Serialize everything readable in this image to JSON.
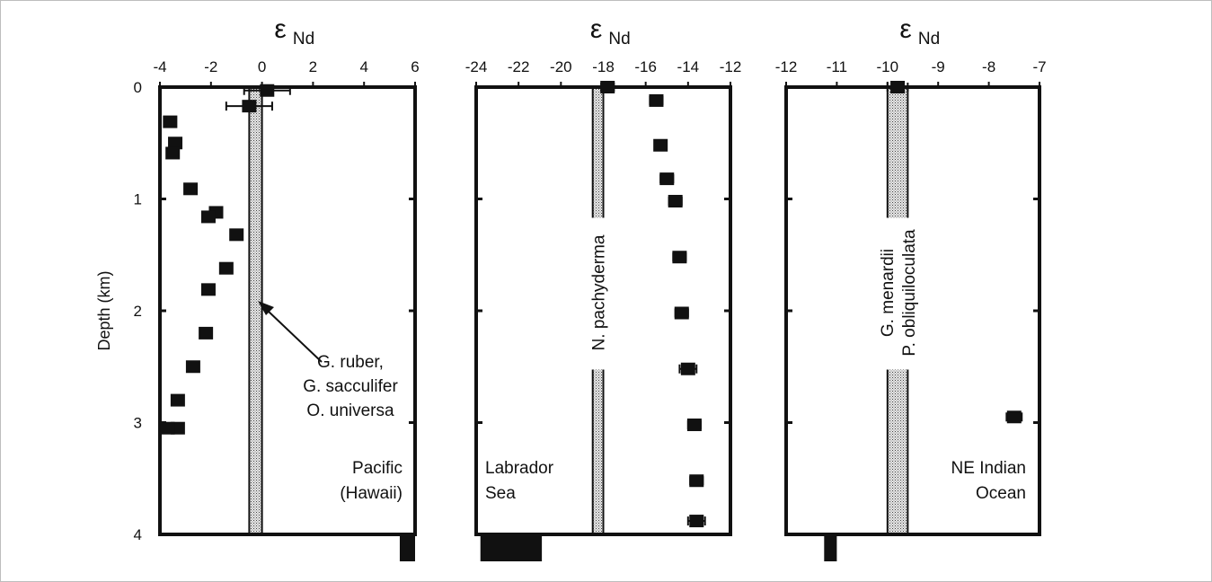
{
  "chart_data": [
    {
      "type": "scatter",
      "xlabel": "ε",
      "xlabel_sub": "Nd",
      "ylabel": "Depth (km)",
      "xlim": [
        -4,
        6
      ],
      "ylim": [
        0,
        4
      ],
      "xticks": [
        "-4",
        "-2",
        "0",
        "2",
        "4",
        "6"
      ],
      "yticks": [
        "0",
        "1",
        "2",
        "3",
        "4"
      ],
      "band": [
        -0.5,
        0
      ],
      "band_labels": [
        "G. ruber,",
        "G. sacculifer",
        "O. universa"
      ],
      "region_labels": [
        "Pacific",
        "(Hawaii)"
      ],
      "bottom_bar": [
        5.4,
        6.0
      ],
      "points": [
        {
          "x": 0.2,
          "y": 0.03,
          "err": 0.9
        },
        {
          "x": -0.5,
          "y": 0.17,
          "err": 0.9
        },
        {
          "x": -3.6,
          "y": 0.31,
          "err": 0
        },
        {
          "x": -3.4,
          "y": 0.5,
          "err": 0
        },
        {
          "x": -3.5,
          "y": 0.59,
          "err": 0
        },
        {
          "x": -2.8,
          "y": 0.91,
          "err": 0
        },
        {
          "x": -1.8,
          "y": 1.12,
          "err": 0
        },
        {
          "x": -2.1,
          "y": 1.16,
          "err": 0
        },
        {
          "x": -1.0,
          "y": 1.32,
          "err": 0
        },
        {
          "x": -1.4,
          "y": 1.62,
          "err": 0
        },
        {
          "x": -2.1,
          "y": 1.81,
          "err": 0
        },
        {
          "x": -2.2,
          "y": 2.2,
          "err": 0
        },
        {
          "x": -2.7,
          "y": 2.5,
          "err": 0
        },
        {
          "x": -3.3,
          "y": 2.8,
          "err": 0
        },
        {
          "x": -3.3,
          "y": 3.05,
          "err": 0
        },
        {
          "x": -3.7,
          "y": 3.05,
          "err": 0
        }
      ]
    },
    {
      "type": "scatter",
      "xlabel": "ε",
      "xlabel_sub": "Nd",
      "xlim": [
        -24,
        -12
      ],
      "ylim": [
        0,
        4
      ],
      "xticks": [
        "-24",
        "-22",
        "-20",
        "-18",
        "-16",
        "-14",
        "-12"
      ],
      "band": [
        -18.5,
        -18
      ],
      "band_labels": [
        "N. pachyderma"
      ],
      "region_labels": [
        "Labrador",
        "Sea"
      ],
      "bottom_bar": [
        -23.8,
        -20.9
      ],
      "points": [
        {
          "x": -17.8,
          "y": 0.0,
          "err": 0.3
        },
        {
          "x": -15.5,
          "y": 0.12,
          "err": 0.3
        },
        {
          "x": -15.3,
          "y": 0.52,
          "err": 0
        },
        {
          "x": -15.0,
          "y": 0.82,
          "err": 0.3
        },
        {
          "x": -14.6,
          "y": 1.02,
          "err": 0.3
        },
        {
          "x": -14.4,
          "y": 1.52,
          "err": 0.3
        },
        {
          "x": -14.3,
          "y": 2.02,
          "err": 0.3
        },
        {
          "x": -14.0,
          "y": 2.52,
          "err": 0.4
        },
        {
          "x": -13.7,
          "y": 3.02,
          "err": 0.3
        },
        {
          "x": -13.6,
          "y": 3.52,
          "err": 0.3
        },
        {
          "x": -13.6,
          "y": 3.88,
          "err": 0.4
        }
      ]
    },
    {
      "type": "scatter",
      "xlabel": "ε",
      "xlabel_sub": "Nd",
      "xlim": [
        -12,
        -7
      ],
      "ylim": [
        0,
        4
      ],
      "xticks": [
        "-12",
        "-11",
        "-10",
        "-9",
        "-8",
        "-7"
      ],
      "band": [
        -10,
        -9.6
      ],
      "band_labels": [
        "G. menardii",
        "P. obliquiloculata"
      ],
      "region_labels": [
        "NE Indian",
        "Ocean"
      ],
      "bottom_bar": [
        -11.25,
        -11.0
      ],
      "points": [
        {
          "x": -9.8,
          "y": 0.0,
          "err": 0.2
        },
        {
          "x": -7.5,
          "y": 2.95,
          "err": 0.15
        }
      ]
    }
  ]
}
